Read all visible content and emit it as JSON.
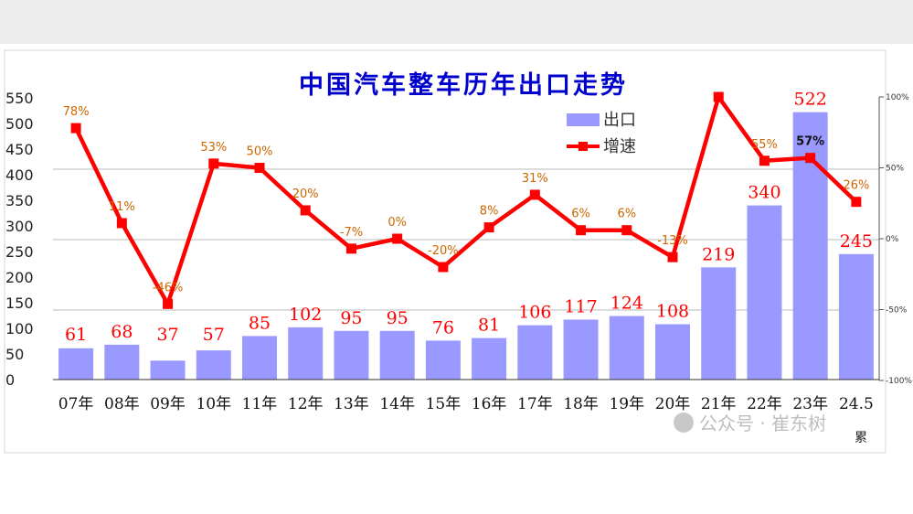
{
  "chart_data": {
    "type": "bar",
    "title": "中国汽车整车历年出口走势",
    "categories": [
      "07年",
      "08年",
      "09年",
      "10年",
      "11年",
      "12年",
      "13年",
      "14年",
      "15年",
      "16年",
      "17年",
      "18年",
      "19年",
      "20年",
      "21年",
      "22年",
      "23年",
      "24.5"
    ],
    "category_note": "累",
    "series": [
      {
        "name": "出口",
        "type": "bar",
        "values": [
          61,
          68,
          37,
          57,
          85,
          102,
          95,
          95,
          76,
          81,
          106,
          117,
          124,
          108,
          219,
          340,
          522,
          245
        ]
      },
      {
        "name": "增速",
        "type": "line",
        "axis": "right",
        "values": [
          78,
          11,
          -46,
          53,
          50,
          20,
          -7,
          0,
          -20,
          8,
          31,
          6,
          6,
          -13,
          100,
          55,
          57,
          26
        ],
        "labels": [
          "78%",
          "11%",
          "-46%",
          "53%",
          "50%",
          "20%",
          "-7%",
          "0%",
          "-20%",
          "8%",
          "31%",
          "6%",
          "6%",
          "-13%",
          "",
          "55%",
          "57%",
          "26%"
        ]
      }
    ],
    "y_left": {
      "ylim": [
        0,
        550
      ],
      "ticks": [
        "0",
        "50",
        "100",
        "150",
        "200",
        "250",
        "300",
        "350",
        "400",
        "450",
        "500",
        "550"
      ]
    },
    "y_right": {
      "ylim": [
        -100,
        100
      ],
      "ticks": [
        "-100%",
        "-50%",
        "0%",
        "50%",
        "100%"
      ]
    },
    "legend": {
      "placement": "top-right",
      "entries": [
        "出口",
        "增速"
      ]
    },
    "colors": {
      "bar": "#9999ff",
      "line": "#ff0000",
      "bar_label": "#ff0000",
      "line_label": "#cc6600",
      "title": "#0000cc"
    },
    "grid": "horizontal"
  },
  "watermark": "公众号 · 崔东树"
}
